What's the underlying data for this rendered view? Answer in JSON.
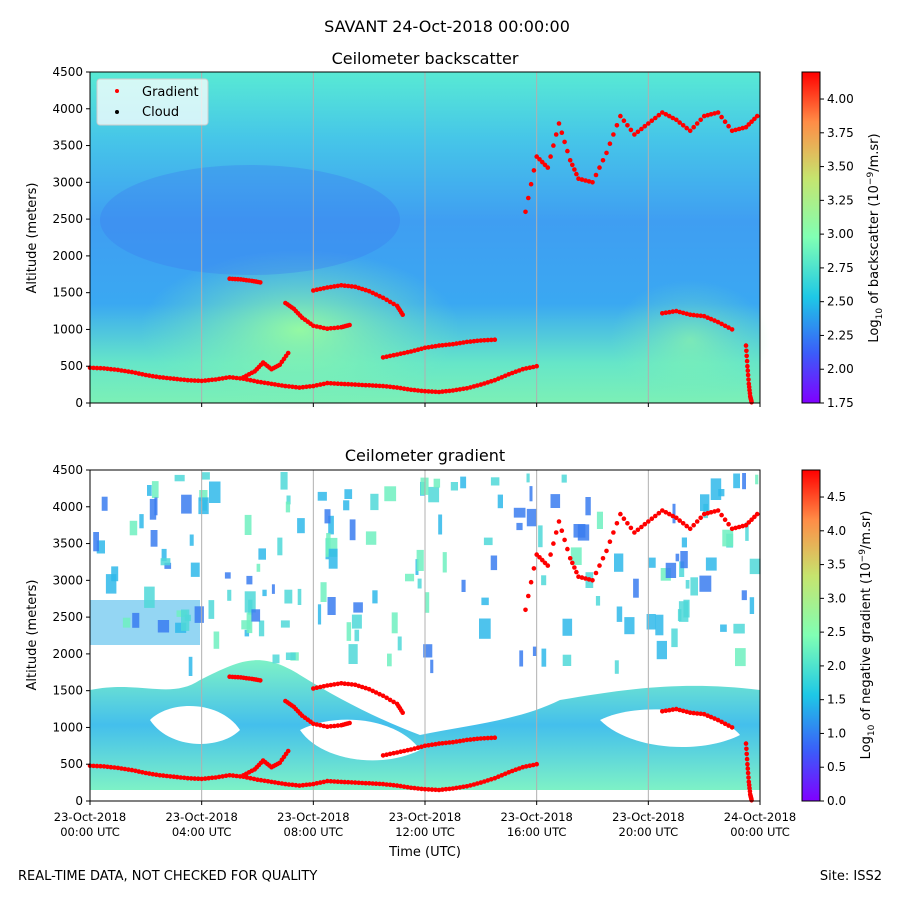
{
  "suptitle": "SAVANT 24-Oct-2018 00:00:00",
  "footer": {
    "left": "REAL-TIME DATA, NOT CHECKED FOR QUALITY",
    "right": "Site: ISS2"
  },
  "chart_data": [
    {
      "type": "heatmap",
      "title": "Ceilometer backscatter",
      "ylabel": "Altitude (meters)",
      "xlabel": "",
      "ylim": [
        0,
        4500
      ],
      "yticks": [
        "0",
        "500",
        "1000",
        "1500",
        "2000",
        "2500",
        "3000",
        "3500",
        "4000",
        "4500"
      ],
      "xlim_hours": [
        0,
        24
      ],
      "grid": "vertical lines every 4 hours",
      "colorbar": {
        "label": "Log10 of backscatter (10^-9/m.sr)",
        "label_parts": [
          "Log",
          "10",
          " of backscatter (10",
          "−9",
          "/m.sr)"
        ],
        "range": [
          1.75,
          4.2
        ],
        "ticks": [
          "1.75",
          "2.00",
          "2.25",
          "2.50",
          "2.75",
          "3.00",
          "3.25",
          "3.50",
          "3.75",
          "4.00"
        ],
        "colormap": "rainbow"
      },
      "legend": {
        "placement": "upper-left",
        "entries": [
          {
            "label": "Gradient",
            "color": "#ff0000"
          },
          {
            "label": "Cloud",
            "color": "#000000"
          }
        ]
      }
    },
    {
      "type": "heatmap",
      "title": "Ceilometer gradient",
      "ylabel": "Altitude (meters)",
      "xlabel": "Time (UTC)",
      "ylim": [
        0,
        4500
      ],
      "yticks": [
        "0",
        "500",
        "1000",
        "1500",
        "2000",
        "2500",
        "3000",
        "3500",
        "4000",
        "4500"
      ],
      "xticks": [
        [
          "23-Oct-2018",
          "00:00 UTC"
        ],
        [
          "23-Oct-2018",
          "04:00 UTC"
        ],
        [
          "23-Oct-2018",
          "08:00 UTC"
        ],
        [
          "23-Oct-2018",
          "12:00 UTC"
        ],
        [
          "23-Oct-2018",
          "16:00 UTC"
        ],
        [
          "23-Oct-2018",
          "20:00 UTC"
        ],
        [
          "24-Oct-2018",
          "00:00 UTC"
        ]
      ],
      "xlim_hours": [
        0,
        24
      ],
      "grid": "vertical lines every 4 hours",
      "colorbar": {
        "label": "Log10 of negative gradient (10^-9/m.sr)",
        "label_parts": [
          "Log",
          "10",
          " of negative gradient (10",
          "−9",
          "/m.sr)"
        ],
        "range": [
          0,
          4.9
        ],
        "ticks": [
          "0.0",
          "0.5",
          "1.0",
          "1.5",
          "2.0",
          "2.5",
          "3.0",
          "3.5",
          "4.0",
          "4.5"
        ],
        "colormap": "rainbow"
      }
    }
  ],
  "gradient_traces": [
    {
      "hours": [
        0,
        0.5,
        1,
        1.5,
        2,
        2.5,
        3,
        3.5,
        4,
        4.5,
        5,
        5.5,
        6,
        6.5,
        7,
        7.5,
        8,
        8.5,
        9,
        9.5,
        10,
        10.5,
        11,
        11.5,
        12,
        12.5,
        13,
        13.5,
        14,
        14.5,
        15,
        15.5,
        16
      ],
      "altitude_m": [
        480,
        470,
        450,
        420,
        380,
        350,
        330,
        310,
        300,
        320,
        350,
        330,
        290,
        260,
        230,
        210,
        230,
        270,
        260,
        250,
        240,
        230,
        210,
        180,
        160,
        150,
        170,
        200,
        250,
        310,
        390,
        460,
        500
      ]
    },
    {
      "hours": [
        8.0,
        8.5,
        9.0,
        9.5,
        10.0,
        10.5,
        11.0,
        11.2
      ],
      "altitude_m": [
        1530,
        1570,
        1600,
        1580,
        1520,
        1430,
        1320,
        1200
      ]
    },
    {
      "hours": [
        7.0,
        7.3,
        7.6,
        8.0,
        8.5,
        9.0,
        9.3
      ],
      "altitude_m": [
        1360,
        1280,
        1160,
        1050,
        1010,
        1030,
        1060
      ]
    },
    {
      "hours": [
        10.5,
        11,
        11.5,
        12,
        12.5,
        13,
        13.5,
        14,
        14.5
      ],
      "altitude_m": [
        620,
        660,
        700,
        750,
        780,
        800,
        830,
        850,
        860
      ]
    },
    {
      "hours": [
        5.0,
        5.4,
        5.8,
        6.1
      ],
      "altitude_m": [
        1690,
        1680,
        1660,
        1640
      ]
    },
    {
      "hours": [
        5.5,
        5.9,
        6.2,
        6.5,
        6.8,
        7.1
      ],
      "altitude_m": [
        350,
        430,
        550,
        460,
        520,
        680
      ]
    },
    {
      "hours": [
        20.5,
        21,
        21.5,
        22,
        22.5,
        23
      ],
      "altitude_m": [
        1220,
        1250,
        1200,
        1180,
        1100,
        1000
      ]
    },
    {
      "hours": [
        23.5,
        23.55,
        23.6,
        23.65,
        23.7
      ],
      "altitude_m": [
        780,
        500,
        260,
        90,
        10
      ]
    },
    {
      "hours": [
        15.6,
        16.0,
        16.4,
        16.8,
        17.2,
        17.5,
        18.0,
        18.5,
        19.0,
        19.5,
        20.0,
        20.5,
        21.0,
        21.5,
        22.0,
        22.5,
        23.0,
        23.5,
        23.9
      ],
      "altitude_m": [
        2600,
        3350,
        3200,
        3800,
        3300,
        3050,
        3000,
        3400,
        3900,
        3650,
        3800,
        3950,
        3850,
        3700,
        3900,
        3950,
        3700,
        3750,
        3900
      ]
    }
  ]
}
